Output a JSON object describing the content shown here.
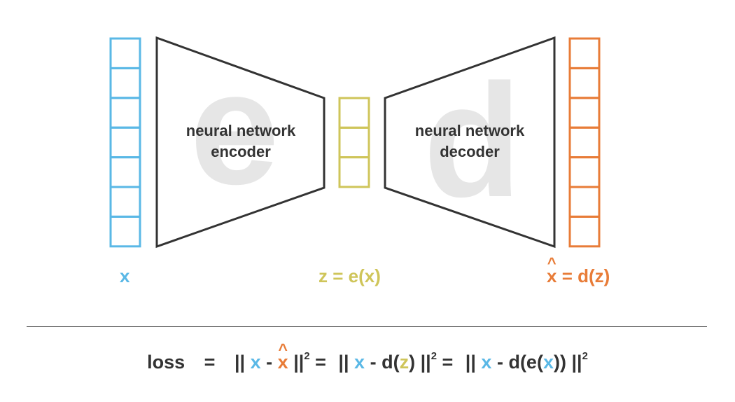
{
  "encoder": {
    "line1": "neural network",
    "line2": "encoder",
    "watermark": "e"
  },
  "decoder": {
    "line1": "neural network",
    "line2": "decoder",
    "watermark": "d"
  },
  "labels": {
    "x": "x",
    "z": "z = e(x)",
    "xhat_base": "x",
    "hat": "^",
    "xhat_rest": " = d(z)"
  },
  "loss": {
    "word": "loss",
    "eq": "=",
    "norm": "||",
    "x": "x",
    "minus": "-",
    "sq": "2",
    "d_open": "d(",
    "z": "z",
    "close": ")",
    "de_open": "d(e(",
    "de_close": "))"
  },
  "vectors": {
    "input_cells": 7,
    "latent_cells": 3,
    "output_cells": 7
  },
  "colors": {
    "input": "#5ab8e6",
    "latent": "#cfc55a",
    "output": "#e87c38",
    "network_stroke": "#333333",
    "watermark": "#e6e6e6"
  }
}
